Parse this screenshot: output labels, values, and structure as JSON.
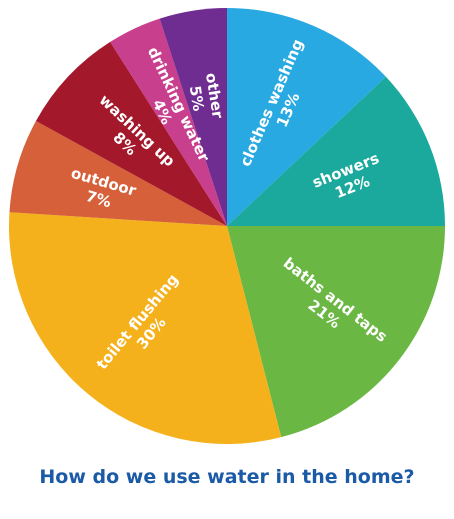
{
  "chart_data": {
    "type": "pie",
    "title": "How do we use water in the home?",
    "slices": [
      {
        "label": "clothes washing",
        "value": 13,
        "value_label": "13%",
        "color": "#29a9e1"
      },
      {
        "label": "showers",
        "value": 12,
        "value_label": "12%",
        "color": "#1ba89d"
      },
      {
        "label": "baths and taps",
        "value": 21,
        "value_label": "21%",
        "color": "#6ab744"
      },
      {
        "label": "toilet flushing",
        "value": 30,
        "value_label": "30%",
        "color": "#f5b11b"
      },
      {
        "label": "outdoor",
        "value": 7,
        "value_label": "7%",
        "color": "#d6603a"
      },
      {
        "label": "washing up",
        "value": 8,
        "value_label": "8%",
        "color": "#a3182a"
      },
      {
        "label": "drinking water",
        "value": 4,
        "value_label": "4%",
        "color": "#c83f8e"
      },
      {
        "label": "other",
        "value": 5,
        "value_label": "5%",
        "color": "#6f2c91"
      }
    ]
  }
}
